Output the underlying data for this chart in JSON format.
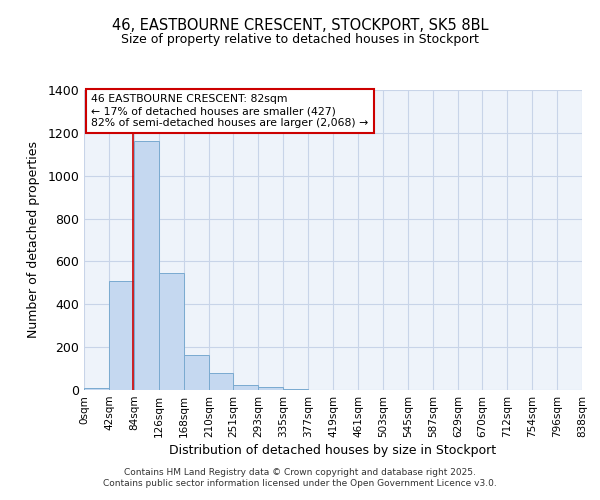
{
  "title_line1": "46, EASTBOURNE CRESCENT, STOCKPORT, SK5 8BL",
  "title_line2": "Size of property relative to detached houses in Stockport",
  "xlabel": "Distribution of detached houses by size in Stockport",
  "ylabel": "Number of detached properties",
  "annotation_line1": "46 EASTBOURNE CRESCENT: 82sqm",
  "annotation_line2": "← 17% of detached houses are smaller (427)",
  "annotation_line3": "82% of semi-detached houses are larger (2,068) →",
  "property_size": 82,
  "bin_edges": [
    0,
    42,
    84,
    126,
    168,
    210,
    251,
    293,
    335,
    377,
    419,
    461,
    503,
    545,
    587,
    629,
    670,
    712,
    754,
    796,
    838
  ],
  "bar_heights": [
    10,
    510,
    1160,
    545,
    165,
    80,
    25,
    15,
    5,
    0,
    0,
    0,
    0,
    0,
    0,
    0,
    0,
    0,
    0,
    0
  ],
  "bar_color": "#c5d8f0",
  "bar_edge_color": "#7aaad0",
  "grid_color": "#c8d4e8",
  "background_color": "#eef3fa",
  "fig_background": "#ffffff",
  "red_line_color": "#cc0000",
  "annotation_box_color": "#cc0000",
  "ylim": [
    0,
    1400
  ],
  "yticks": [
    0,
    200,
    400,
    600,
    800,
    1000,
    1200,
    1400
  ],
  "footer_line1": "Contains HM Land Registry data © Crown copyright and database right 2025.",
  "footer_line2": "Contains public sector information licensed under the Open Government Licence v3.0."
}
